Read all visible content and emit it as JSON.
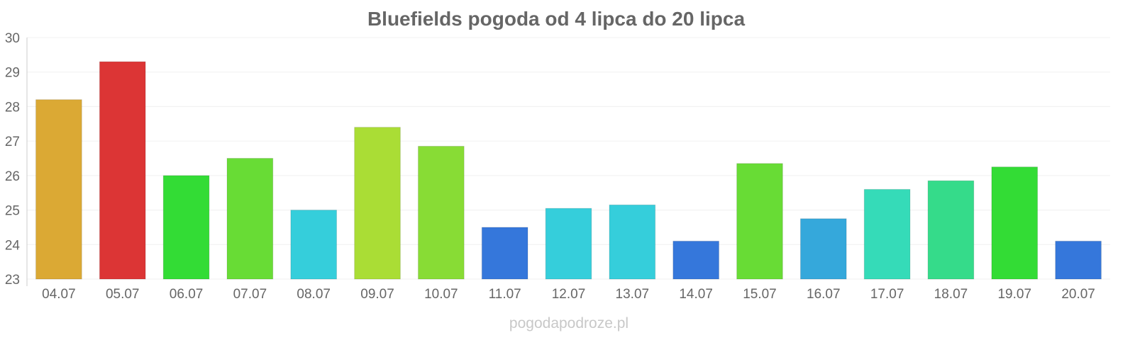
{
  "chart_data": {
    "type": "bar",
    "title": "Bluefields pogoda od 4 lipca do 20 lipca",
    "categories": [
      "04.07",
      "05.07",
      "06.07",
      "07.07",
      "08.07",
      "09.07",
      "10.07",
      "11.07",
      "12.07",
      "13.07",
      "14.07",
      "15.07",
      "16.07",
      "17.07",
      "18.07",
      "19.07",
      "20.07"
    ],
    "values": [
      28.2,
      29.3,
      26.0,
      26.5,
      25.0,
      27.4,
      26.85,
      24.5,
      25.05,
      25.15,
      24.1,
      26.35,
      24.75,
      25.6,
      25.85,
      26.25,
      24.1
    ],
    "colors": [
      "#dba934",
      "#dc3535",
      "#33dc35",
      "#68dc35",
      "#35cedb",
      "#aadd35",
      "#88dc35",
      "#3577db",
      "#35cedb",
      "#35cedb",
      "#3577db",
      "#68dc35",
      "#35a8db",
      "#35dbb8",
      "#35db8a",
      "#33dc35",
      "#3577db"
    ],
    "ylim": [
      23,
      30
    ],
    "yticks": [
      23,
      24,
      25,
      26,
      27,
      28,
      29,
      30
    ],
    "grid": true
  },
  "watermark": "pogodapodroze.pl"
}
